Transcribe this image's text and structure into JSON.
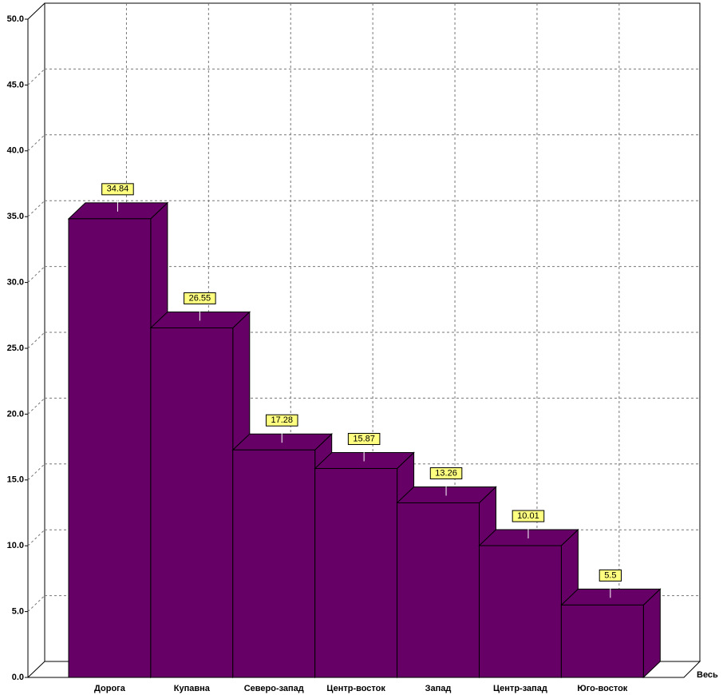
{
  "chart_data": {
    "type": "bar3d",
    "categories": [
      "Дорога",
      "Купавна",
      "Северо-запад",
      "Центр-восток",
      "Запад",
      "Центр-запад",
      "Юго-восток"
    ],
    "values": [
      34.84,
      26.55,
      17.28,
      15.87,
      13.26,
      10.01,
      5.5
    ],
    "color": "#660066",
    "x_label": "Весь",
    "ylim": [
      0,
      50
    ],
    "yticks": [
      {
        "value": 0,
        "label": "0.0"
      },
      {
        "value": 5,
        "label": "5.0"
      },
      {
        "value": 10,
        "label": "10.0"
      },
      {
        "value": 15,
        "label": "15.0"
      },
      {
        "value": 20,
        "label": "20.0"
      },
      {
        "value": 25,
        "label": "25.0"
      },
      {
        "value": 30,
        "label": "30.0"
      },
      {
        "value": 35,
        "label": "35.0"
      },
      {
        "value": 40,
        "label": "40.0"
      },
      {
        "value": 45,
        "label": "45.0"
      },
      {
        "value": 50,
        "label": "50.0"
      }
    ],
    "grid": true
  }
}
